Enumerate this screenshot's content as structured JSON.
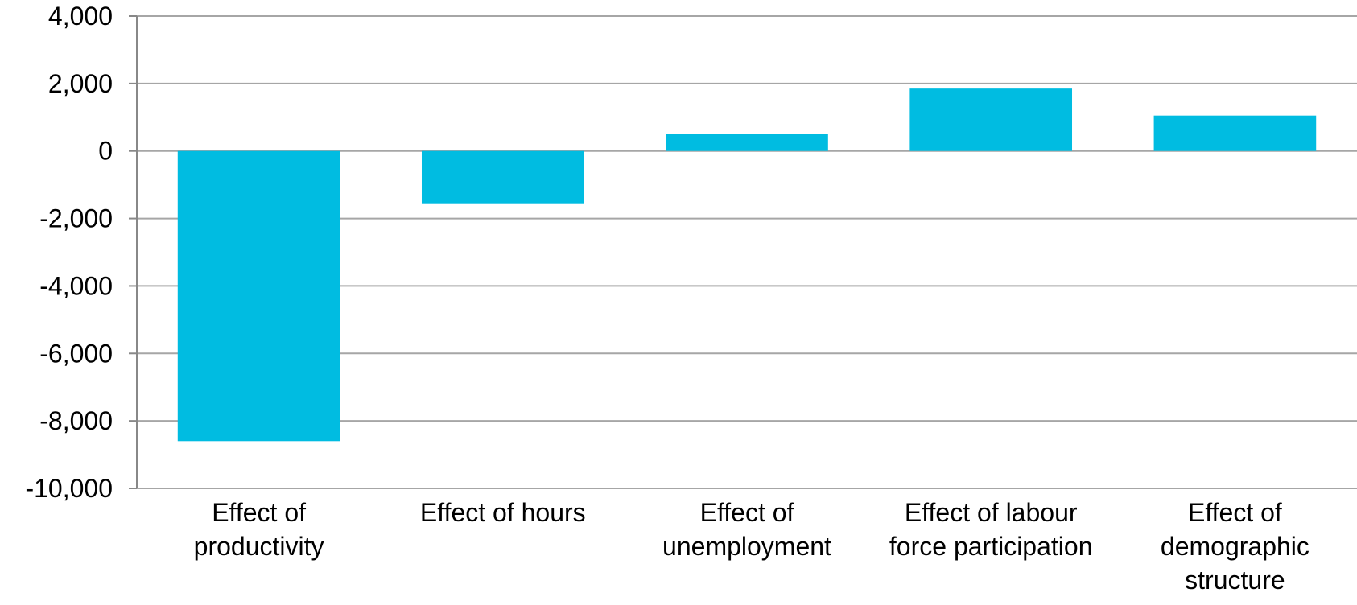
{
  "chart_data": {
    "type": "bar",
    "title": "",
    "xlabel": "",
    "ylabel": "",
    "categories": [
      [
        "Effect of",
        "productivity"
      ],
      [
        "Effect of hours"
      ],
      [
        "Effect of",
        "unemployment"
      ],
      [
        "Effect of labour",
        "force participation"
      ],
      [
        "Effect of",
        "demographic",
        "structure"
      ]
    ],
    "values": [
      -8600,
      -1550,
      500,
      1850,
      1050
    ],
    "ylim": [
      -10000,
      4000
    ],
    "yticks": [
      4000,
      2000,
      0,
      -2000,
      -4000,
      -6000,
      -8000,
      -10000
    ],
    "ytick_labels": [
      "4,000",
      "2,000",
      "0",
      "-2,000",
      "-4,000",
      "-6,000",
      "-8,000",
      "-10,000"
    ],
    "grid": true,
    "legend": "none",
    "bar_color": "#00BCE1",
    "grid_color": "#A6A6A6",
    "axis_color": "#888888"
  }
}
